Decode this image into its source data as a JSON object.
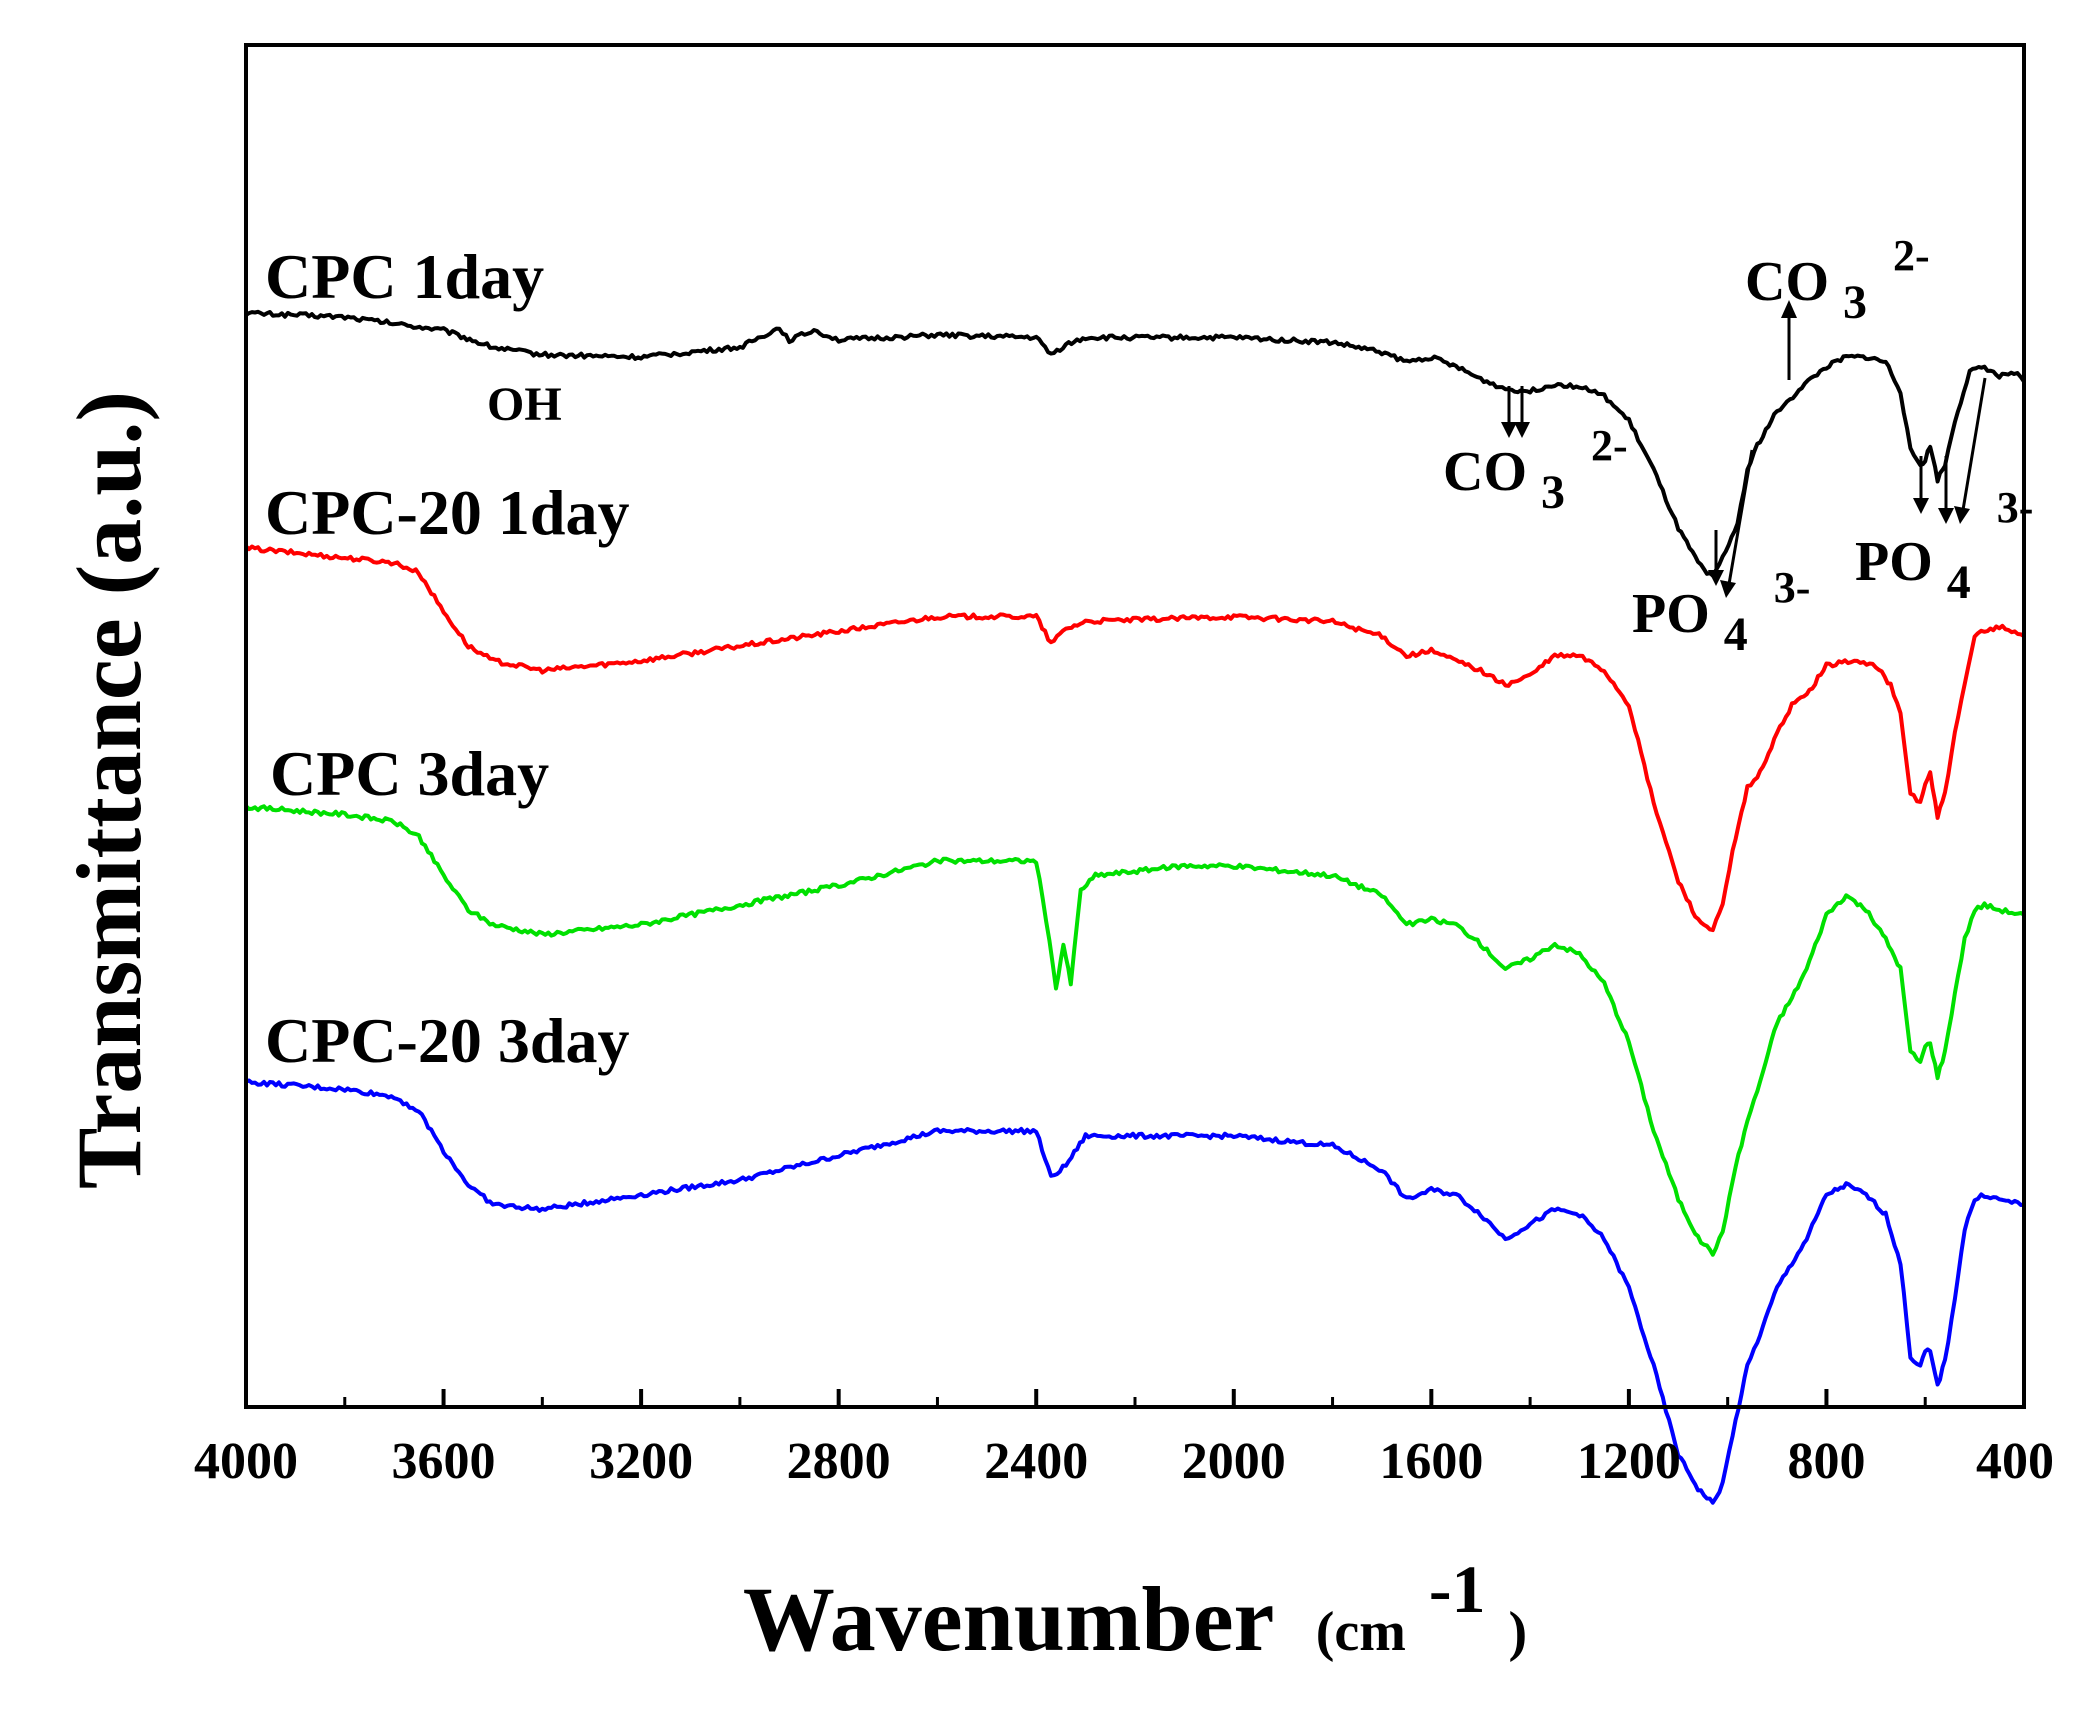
{
  "chart_data": {
    "type": "line",
    "xlabel": "Wavenumber",
    "xlabel_unit_prefix": "(cm",
    "xlabel_unit_sup": "-1",
    "xlabel_unit_suffix": ")",
    "ylabel": "Transmittance (a.u.)",
    "xlim": [
      4000,
      400
    ],
    "x_reversed": true,
    "xticks": [
      4000,
      3600,
      3200,
      2800,
      2400,
      2000,
      1600,
      1200,
      800,
      400
    ],
    "y_units": "arbitrary, vertically offset",
    "grid": false,
    "legend": "inline labels above each curve",
    "series": [
      {
        "name": "CPC 1day",
        "color": "#000000",
        "points": [
          [
            4000,
            0.0
          ],
          [
            3800,
            -0.8
          ],
          [
            3600,
            -3.5
          ],
          [
            3500,
            -7
          ],
          [
            3400,
            -8.5
          ],
          [
            3200,
            -9
          ],
          [
            3000,
            -7
          ],
          [
            2920,
            -3
          ],
          [
            2900,
            -5.5
          ],
          [
            2850,
            -3.5
          ],
          [
            2800,
            -5.5
          ],
          [
            2600,
            -4.5
          ],
          [
            2400,
            -5
          ],
          [
            2370,
            -8.5
          ],
          [
            2340,
            -6.5
          ],
          [
            2300,
            -5
          ],
          [
            2000,
            -5
          ],
          [
            1800,
            -6
          ],
          [
            1700,
            -8
          ],
          [
            1650,
            -10
          ],
          [
            1600,
            -9
          ],
          [
            1550,
            -11
          ],
          [
            1500,
            -13.5
          ],
          [
            1450,
            -15.5
          ],
          [
            1400,
            -16
          ],
          [
            1350,
            -14.5
          ],
          [
            1300,
            -15
          ],
          [
            1250,
            -17
          ],
          [
            1200,
            -22
          ],
          [
            1150,
            -32
          ],
          [
            1100,
            -44
          ],
          [
            1060,
            -51
          ],
          [
            1030,
            -54
          ],
          [
            1010,
            -50
          ],
          [
            980,
            -43
          ],
          [
            960,
            -32
          ],
          [
            940,
            -27
          ],
          [
            900,
            -20
          ],
          [
            880,
            -18.5
          ],
          [
            850,
            -15
          ],
          [
            800,
            -11
          ],
          [
            760,
            -9
          ],
          [
            720,
            -9
          ],
          [
            680,
            -10
          ],
          [
            650,
            -16
          ],
          [
            630,
            -28
          ],
          [
            610,
            -31
          ],
          [
            600,
            -30
          ],
          [
            590,
            -27
          ],
          [
            575,
            -34
          ],
          [
            560,
            -31
          ],
          [
            540,
            -22
          ],
          [
            510,
            -12
          ],
          [
            480,
            -11
          ],
          [
            450,
            -13
          ],
          [
            420,
            -12
          ],
          [
            400,
            -14
          ]
        ]
      },
      {
        "name": "CPC-20 1day",
        "color": "#ff0000",
        "points": [
          [
            4000,
            0.0
          ],
          [
            3800,
            -2
          ],
          [
            3700,
            -3
          ],
          [
            3650,
            -5
          ],
          [
            3600,
            -13
          ],
          [
            3550,
            -20
          ],
          [
            3500,
            -23
          ],
          [
            3400,
            -25
          ],
          [
            3200,
            -23
          ],
          [
            3000,
            -20
          ],
          [
            2800,
            -17
          ],
          [
            2600,
            -14
          ],
          [
            2400,
            -14
          ],
          [
            2370,
            -19.5
          ],
          [
            2340,
            -16.5
          ],
          [
            2300,
            -15
          ],
          [
            2000,
            -14
          ],
          [
            1800,
            -15
          ],
          [
            1700,
            -18
          ],
          [
            1650,
            -22
          ],
          [
            1600,
            -21
          ],
          [
            1550,
            -23
          ],
          [
            1500,
            -25
          ],
          [
            1450,
            -28
          ],
          [
            1400,
            -26
          ],
          [
            1350,
            -22
          ],
          [
            1300,
            -22
          ],
          [
            1250,
            -25
          ],
          [
            1200,
            -32
          ],
          [
            1150,
            -52
          ],
          [
            1100,
            -68
          ],
          [
            1060,
            -76
          ],
          [
            1030,
            -78
          ],
          [
            1010,
            -73
          ],
          [
            990,
            -62
          ],
          [
            960,
            -49
          ],
          [
            940,
            -47
          ],
          [
            900,
            -38
          ],
          [
            870,
            -32
          ],
          [
            840,
            -30
          ],
          [
            800,
            -24
          ],
          [
            750,
            -23
          ],
          [
            700,
            -24
          ],
          [
            670,
            -28
          ],
          [
            650,
            -34
          ],
          [
            630,
            -50
          ],
          [
            610,
            -52
          ],
          [
            600,
            -48
          ],
          [
            590,
            -46
          ],
          [
            575,
            -55
          ],
          [
            560,
            -50
          ],
          [
            540,
            -38
          ],
          [
            520,
            -28
          ],
          [
            500,
            -18
          ],
          [
            480,
            -17
          ],
          [
            450,
            -16
          ],
          [
            400,
            -18
          ]
        ]
      },
      {
        "name": "CPC 3day",
        "color": "#00e000",
        "points": [
          [
            4000,
            0.0
          ],
          [
            3800,
            -1.5
          ],
          [
            3700,
            -3
          ],
          [
            3650,
            -6
          ],
          [
            3600,
            -14
          ],
          [
            3550,
            -21
          ],
          [
            3500,
            -24
          ],
          [
            3400,
            -26
          ],
          [
            3200,
            -24
          ],
          [
            3000,
            -20
          ],
          [
            2800,
            -16
          ],
          [
            2600,
            -11
          ],
          [
            2400,
            -11
          ],
          [
            2380,
            -23
          ],
          [
            2360,
            -37
          ],
          [
            2345,
            -28
          ],
          [
            2330,
            -36
          ],
          [
            2310,
            -17
          ],
          [
            2280,
            -14
          ],
          [
            2100,
            -12
          ],
          [
            2000,
            -12
          ],
          [
            1800,
            -14
          ],
          [
            1700,
            -18
          ],
          [
            1650,
            -24
          ],
          [
            1600,
            -23
          ],
          [
            1550,
            -24
          ],
          [
            1500,
            -28
          ],
          [
            1450,
            -33
          ],
          [
            1400,
            -31
          ],
          [
            1350,
            -28
          ],
          [
            1300,
            -30
          ],
          [
            1250,
            -36
          ],
          [
            1200,
            -48
          ],
          [
            1150,
            -66
          ],
          [
            1100,
            -80
          ],
          [
            1060,
            -88
          ],
          [
            1030,
            -91
          ],
          [
            1010,
            -87
          ],
          [
            990,
            -76
          ],
          [
            960,
            -64
          ],
          [
            940,
            -58
          ],
          [
            900,
            -44
          ],
          [
            870,
            -39
          ],
          [
            840,
            -33
          ],
          [
            800,
            -22
          ],
          [
            760,
            -18
          ],
          [
            720,
            -21
          ],
          [
            680,
            -27
          ],
          [
            650,
            -33
          ],
          [
            630,
            -50
          ],
          [
            610,
            -52
          ],
          [
            600,
            -49
          ],
          [
            590,
            -48
          ],
          [
            575,
            -55
          ],
          [
            560,
            -50
          ],
          [
            540,
            -38
          ],
          [
            520,
            -27
          ],
          [
            500,
            -21
          ],
          [
            480,
            -20
          ],
          [
            450,
            -21
          ],
          [
            400,
            -22
          ]
        ]
      },
      {
        "name": "CPC-20 3day",
        "color": "#0000ff",
        "points": [
          [
            4000,
            0.0
          ],
          [
            3800,
            -1.5
          ],
          [
            3700,
            -3
          ],
          [
            3650,
            -6
          ],
          [
            3600,
            -14
          ],
          [
            3550,
            -21
          ],
          [
            3500,
            -25
          ],
          [
            3400,
            -26
          ],
          [
            3200,
            -23
          ],
          [
            3000,
            -20
          ],
          [
            2800,
            -15
          ],
          [
            2600,
            -10
          ],
          [
            2400,
            -10
          ],
          [
            2370,
            -19.5
          ],
          [
            2340,
            -17
          ],
          [
            2300,
            -11
          ],
          [
            2000,
            -11
          ],
          [
            1800,
            -13
          ],
          [
            1700,
            -18
          ],
          [
            1650,
            -24
          ],
          [
            1600,
            -22
          ],
          [
            1550,
            -23
          ],
          [
            1500,
            -27
          ],
          [
            1450,
            -32
          ],
          [
            1400,
            -29
          ],
          [
            1350,
            -26
          ],
          [
            1300,
            -27
          ],
          [
            1250,
            -32
          ],
          [
            1200,
            -42
          ],
          [
            1150,
            -58
          ],
          [
            1100,
            -76
          ],
          [
            1060,
            -83
          ],
          [
            1030,
            -86
          ],
          [
            1010,
            -82
          ],
          [
            990,
            -72
          ],
          [
            960,
            -58
          ],
          [
            940,
            -53
          ],
          [
            900,
            -42
          ],
          [
            870,
            -37
          ],
          [
            840,
            -32
          ],
          [
            800,
            -23
          ],
          [
            760,
            -21
          ],
          [
            720,
            -23
          ],
          [
            680,
            -27
          ],
          [
            650,
            -37
          ],
          [
            630,
            -56
          ],
          [
            610,
            -58
          ],
          [
            600,
            -55
          ],
          [
            590,
            -55
          ],
          [
            575,
            -62
          ],
          [
            560,
            -57
          ],
          [
            540,
            -44
          ],
          [
            520,
            -30
          ],
          [
            500,
            -24
          ],
          [
            480,
            -23
          ],
          [
            450,
            -24
          ],
          [
            400,
            -25
          ]
        ]
      }
    ],
    "annotations": {
      "oh": "OH",
      "co3_a": {
        "base": "CO",
        "sub": "3",
        "sup": "2-"
      },
      "co3_b": {
        "base": "CO",
        "sub": "3",
        "sup": "2-"
      },
      "po4_a": {
        "base": "PO",
        "sub": "4",
        "sup": "3-"
      },
      "po4_b": {
        "base": "PO",
        "sub": "4",
        "sup": "3-"
      }
    }
  }
}
